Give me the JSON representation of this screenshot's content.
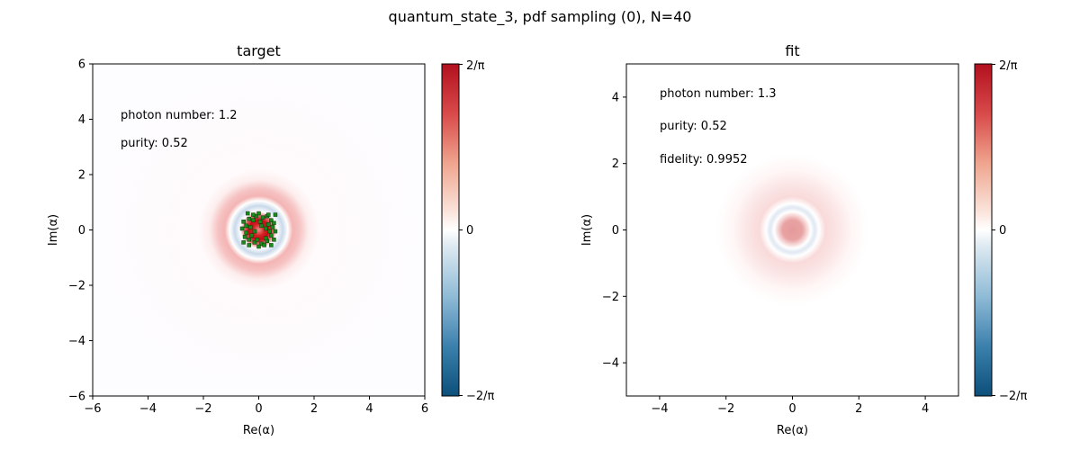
{
  "figure": {
    "suptitle": "quantum_state_3, pdf sampling (0), N=40"
  },
  "colorbar": {
    "top_label": "2/π",
    "mid_label": "0",
    "bottom_label": "−2/π",
    "colors": {
      "max": "#c0101a",
      "mid": "#ffffff",
      "min": "#0b4f7a"
    }
  },
  "chart_data": [
    {
      "type": "heatmap",
      "title": "target",
      "xlabel": "Re(α)",
      "ylabel": "Im(α)",
      "xlim": [
        -6,
        6
      ],
      "ylim": [
        -6,
        6
      ],
      "xticks": [
        -6,
        -4,
        -2,
        0,
        2,
        4,
        6
      ],
      "yticks": [
        -6,
        -4,
        -2,
        0,
        2,
        4,
        6
      ],
      "annotations": [
        "photon number: 1.2",
        "purity: 0.52"
      ],
      "colorbar_range": [
        "−2/π",
        "2/π"
      ],
      "description_rings": [
        {
          "radius": 0.45,
          "sign": "positive",
          "strength": 1.0
        },
        {
          "radius": 0.95,
          "sign": "negative",
          "strength": 0.35
        },
        {
          "radius": 1.55,
          "sign": "positive",
          "strength": 0.45
        }
      ],
      "sample_points": {
        "color": "#1a8a1a",
        "points": [
          [
            0.3,
            0.5
          ],
          [
            0.45,
            0.35
          ],
          [
            0.5,
            0.1
          ],
          [
            0.45,
            -0.2
          ],
          [
            0.3,
            -0.4
          ],
          [
            0.1,
            -0.5
          ],
          [
            -0.15,
            -0.45
          ],
          [
            -0.35,
            -0.35
          ],
          [
            -0.45,
            -0.1
          ],
          [
            -0.45,
            0.15
          ],
          [
            -0.35,
            0.4
          ],
          [
            -0.1,
            0.5
          ],
          [
            0.15,
            0.45
          ],
          [
            0.35,
            0.2
          ],
          [
            0.4,
            -0.05
          ],
          [
            0.25,
            -0.3
          ],
          [
            -0.05,
            -0.35
          ],
          [
            -0.25,
            -0.2
          ],
          [
            -0.3,
            0.1
          ],
          [
            -0.2,
            0.35
          ],
          [
            0.05,
            0.3
          ],
          [
            0.55,
            0.25
          ],
          [
            0.55,
            -0.35
          ],
          [
            -0.55,
            0.3
          ],
          [
            -0.5,
            -0.25
          ],
          [
            0.2,
            -0.55
          ],
          [
            -0.2,
            0.55
          ],
          [
            0.6,
            -0.05
          ],
          [
            -0.6,
            0.05
          ],
          [
            0.35,
            0.55
          ],
          [
            -0.35,
            -0.55
          ],
          [
            0.0,
            0.6
          ],
          [
            0.0,
            -0.6
          ],
          [
            0.6,
            0.55
          ],
          [
            -0.4,
            0.6
          ],
          [
            0.45,
            -0.55
          ],
          [
            -0.55,
            -0.45
          ],
          [
            0.25,
            0.05
          ],
          [
            -0.15,
            -0.05
          ],
          [
            0.1,
            0.15
          ]
        ]
      }
    },
    {
      "type": "heatmap",
      "title": "fit",
      "xlabel": "Re(α)",
      "ylabel": "Im(α)",
      "xlim": [
        -5,
        5
      ],
      "ylim": [
        -5,
        5
      ],
      "xticks": [
        -4,
        -2,
        0,
        2,
        4
      ],
      "yticks": [
        -4,
        -2,
        0,
        2,
        4
      ],
      "annotations": [
        "photon number: 1.3",
        "purity: 0.52",
        "fidelity: 0.9952"
      ],
      "colorbar_range": [
        "−2/π",
        "2/π"
      ],
      "description_rings": [
        {
          "radius": 0.0,
          "sign": "positive",
          "strength": 0.55
        },
        {
          "radius": 1.1,
          "sign": "negative",
          "strength": 0.2
        },
        {
          "radius": 1.9,
          "sign": "positive",
          "strength": 0.25
        }
      ]
    }
  ]
}
